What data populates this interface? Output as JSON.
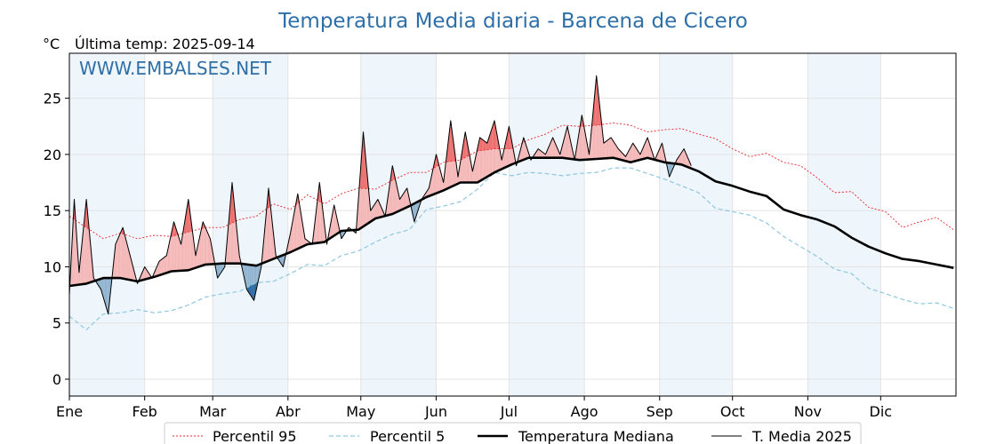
{
  "chart_data": {
    "type": "line",
    "title": "Temperatura Media diaria - Barcena de Cicero",
    "unit": "°C",
    "last_temp_label": "Última temp: 2025-09-14",
    "watermark": "WWW.EMBALSES.NET",
    "x_tick_labels": [
      "Ene",
      "Feb",
      "Mar",
      "Abr",
      "May",
      "Jun",
      "Jul",
      "Ago",
      "Sep",
      "Oct",
      "Nov",
      "Dic"
    ],
    "month_start_days": [
      1,
      32,
      60,
      91,
      121,
      152,
      182,
      213,
      244,
      274,
      305,
      335
    ],
    "xlim": [
      1,
      366
    ],
    "ylim": [
      -1.5,
      29
    ],
    "y_ticks": [
      0,
      5,
      10,
      15,
      20,
      25
    ],
    "grid": true,
    "legend_position": "bottom-center",
    "colors": {
      "p95": "#e8262c",
      "p5": "#8ec8df",
      "median": "#000000",
      "actual": "#000000",
      "above": "#f4b6b6",
      "above_strong": "#ee6d6d",
      "below": "#8fb3cf",
      "below_strong": "#2b69a3",
      "title": "#2f6fa7",
      "band": "#eef5fb"
    },
    "series_p95": {
      "name": "Percentil 95",
      "x": [
        1,
        8,
        15,
        22,
        29,
        36,
        43,
        50,
        57,
        64,
        71,
        78,
        85,
        92,
        99,
        106,
        113,
        120,
        127,
        134,
        141,
        148,
        155,
        162,
        169,
        176,
        183,
        190,
        197,
        204,
        211,
        218,
        225,
        232,
        239,
        246,
        253,
        260,
        267,
        274,
        281,
        288,
        295,
        302,
        309,
        316,
        323,
        330,
        337,
        344,
        351,
        358,
        365
      ],
      "y": [
        14.5,
        13.5,
        12.5,
        13.0,
        12.5,
        12.8,
        12.7,
        13.1,
        13.5,
        13.5,
        14.2,
        14.5,
        15.6,
        15.1,
        16.4,
        15.6,
        16.5,
        17.0,
        16.9,
        17.7,
        18.4,
        18.4,
        19.3,
        19.5,
        20.3,
        20.5,
        20.5,
        21.3,
        21.8,
        22.6,
        22.5,
        22.6,
        22.8,
        22.6,
        22.0,
        22.2,
        22.3,
        21.8,
        21.4,
        20.5,
        19.8,
        20.1,
        19.3,
        19.0,
        17.9,
        16.6,
        16.7,
        15.3,
        14.9,
        13.5,
        14.0,
        14.4,
        13.3
      ]
    },
    "series_p5": {
      "name": "Percentil 5",
      "x": [
        1,
        8,
        15,
        22,
        29,
        36,
        43,
        50,
        57,
        64,
        71,
        78,
        85,
        92,
        99,
        106,
        113,
        120,
        127,
        134,
        141,
        148,
        155,
        162,
        169,
        176,
        183,
        190,
        197,
        204,
        211,
        218,
        225,
        232,
        239,
        246,
        253,
        260,
        267,
        274,
        281,
        288,
        295,
        302,
        309,
        316,
        323,
        330,
        337,
        344,
        351,
        358,
        365
      ],
      "y": [
        5.6,
        4.4,
        5.8,
        5.9,
        6.2,
        5.9,
        6.1,
        6.6,
        7.3,
        7.6,
        7.8,
        8.6,
        8.7,
        9.4,
        10.2,
        10.1,
        11.0,
        11.4,
        12.2,
        12.9,
        13.3,
        15.1,
        15.4,
        15.8,
        16.9,
        18.4,
        18.1,
        18.4,
        18.3,
        18.1,
        18.3,
        18.4,
        18.8,
        18.8,
        18.3,
        17.8,
        17.2,
        16.6,
        15.2,
        14.9,
        14.6,
        13.9,
        12.7,
        11.8,
        10.9,
        9.8,
        9.4,
        8.1,
        7.6,
        7.1,
        6.7,
        6.8,
        6.3
      ]
    },
    "series_median": {
      "name": "Temperatura Mediana",
      "x": [
        1,
        8,
        15,
        22,
        29,
        36,
        43,
        50,
        57,
        64,
        71,
        78,
        85,
        92,
        99,
        106,
        113,
        120,
        127,
        134,
        141,
        148,
        155,
        162,
        169,
        176,
        183,
        190,
        197,
        204,
        211,
        218,
        225,
        232,
        239,
        246,
        253,
        260,
        267,
        274,
        281,
        288,
        295,
        302,
        309,
        316,
        323,
        330,
        337,
        344,
        351,
        358,
        365
      ],
      "y": [
        8.3,
        8.5,
        9.0,
        9.0,
        8.7,
        9.1,
        9.6,
        9.7,
        10.2,
        10.3,
        10.3,
        10.1,
        10.7,
        11.3,
        12.0,
        12.2,
        13.2,
        13.3,
        14.3,
        14.7,
        15.4,
        16.2,
        16.8,
        17.5,
        17.5,
        18.4,
        19.1,
        19.7,
        19.7,
        19.7,
        19.5,
        19.6,
        19.7,
        19.3,
        19.7,
        19.3,
        19.1,
        18.5,
        17.6,
        17.2,
        16.7,
        16.3,
        15.1,
        14.6,
        14.2,
        13.6,
        12.6,
        11.8,
        11.2,
        10.7,
        10.5,
        10.2,
        9.9
      ]
    },
    "series_actual": {
      "name": "T. Media 2025",
      "x": [
        1,
        3,
        5,
        8,
        11,
        14,
        17,
        20,
        23,
        26,
        29,
        32,
        35,
        38,
        41,
        44,
        47,
        50,
        53,
        56,
        59,
        62,
        65,
        68,
        71,
        74,
        77,
        80,
        83,
        86,
        89,
        92,
        95,
        98,
        101,
        104,
        107,
        110,
        113,
        116,
        119,
        122,
        125,
        128,
        131,
        134,
        137,
        140,
        143,
        146,
        149,
        152,
        155,
        158,
        161,
        164,
        167,
        170,
        173,
        176,
        179,
        182,
        185,
        188,
        191,
        194,
        197,
        200,
        203,
        206,
        209,
        212,
        215,
        218,
        221,
        224,
        227,
        230,
        233,
        236,
        239,
        242,
        245,
        248,
        251,
        254,
        257
      ],
      "y": [
        7.5,
        16.0,
        9.5,
        16.0,
        9.0,
        8.0,
        5.8,
        12.0,
        13.5,
        11.0,
        8.5,
        10.0,
        9.0,
        10.5,
        11.0,
        14.0,
        12.0,
        16.0,
        11.0,
        14.0,
        12.5,
        9.0,
        10.0,
        17.5,
        11.0,
        8.0,
        7.0,
        10.0,
        17.0,
        11.0,
        10.0,
        13.0,
        16.5,
        12.5,
        12.0,
        17.5,
        12.0,
        15.5,
        12.5,
        13.5,
        13.0,
        22.0,
        15.0,
        16.0,
        14.5,
        19.0,
        16.0,
        17.0,
        14.0,
        16.0,
        17.0,
        20.0,
        17.5,
        23.0,
        18.0,
        22.0,
        18.5,
        21.5,
        21.0,
        23.0,
        19.5,
        22.5,
        19.0,
        21.5,
        19.5,
        20.5,
        20.0,
        21.5,
        20.0,
        22.5,
        19.5,
        23.5,
        20.0,
        27.0,
        21.0,
        21.5,
        20.5,
        19.8,
        21.0,
        20.0,
        21.5,
        19.5,
        21.0,
        18.0,
        19.5,
        20.5,
        19.0
      ]
    }
  }
}
